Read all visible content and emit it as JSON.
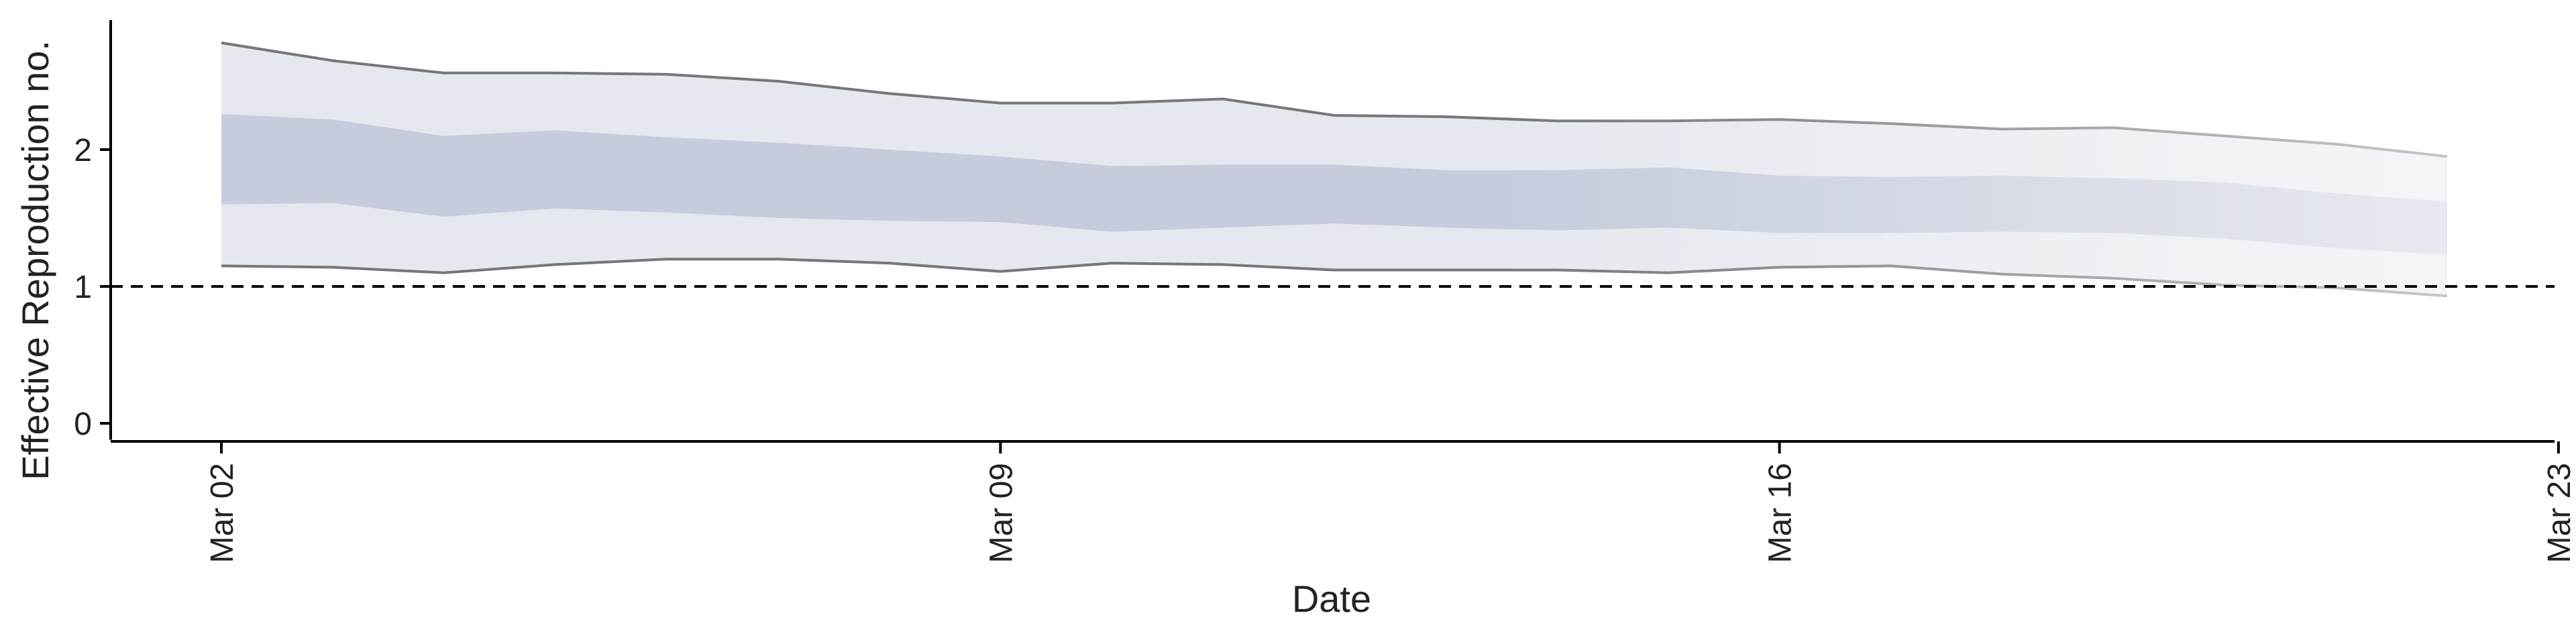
{
  "chart_data": {
    "type": "area",
    "title": "",
    "xlabel": "Date",
    "ylabel": "Effective Reproduction no.",
    "x": [
      "Mar 02",
      "Mar 03",
      "Mar 04",
      "Mar 05",
      "Mar 06",
      "Mar 07",
      "Mar 08",
      "Mar 09",
      "Mar 10",
      "Mar 11",
      "Mar 12",
      "Mar 13",
      "Mar 14",
      "Mar 15",
      "Mar 16",
      "Mar 17",
      "Mar 18",
      "Mar 19",
      "Mar 20",
      "Mar 21",
      "Mar 22"
    ],
    "xlim": [
      "Mar 01",
      "Mar 23"
    ],
    "ylim": [
      -0.12,
      3.0
    ],
    "xticks": [
      "Mar 02",
      "Mar 09",
      "Mar 16",
      "Mar 23"
    ],
    "yticks": [
      0,
      1,
      2
    ],
    "series": [
      {
        "band": "outer",
        "upper": [
          2.78,
          2.65,
          2.56,
          2.56,
          2.55,
          2.5,
          2.41,
          2.34,
          2.34,
          2.37,
          2.25,
          2.24,
          2.21,
          2.21,
          2.22,
          2.19,
          2.15,
          2.16,
          2.1,
          2.04,
          1.95
        ],
        "lower": [
          1.15,
          1.14,
          1.1,
          1.16,
          1.2,
          1.2,
          1.17,
          1.11,
          1.17,
          1.16,
          1.12,
          1.12,
          1.12,
          1.1,
          1.14,
          1.15,
          1.09,
          1.06,
          1.01,
          0.99,
          0.93
        ]
      },
      {
        "band": "inner",
        "upper": [
          2.26,
          2.22,
          2.1,
          2.14,
          2.09,
          2.05,
          2.0,
          1.95,
          1.88,
          1.89,
          1.89,
          1.85,
          1.85,
          1.87,
          1.81,
          1.8,
          1.81,
          1.79,
          1.76,
          1.68,
          1.62
        ],
        "lower": [
          1.6,
          1.61,
          1.51,
          1.57,
          1.54,
          1.5,
          1.48,
          1.47,
          1.4,
          1.43,
          1.46,
          1.43,
          1.41,
          1.43,
          1.39,
          1.39,
          1.4,
          1.39,
          1.35,
          1.28,
          1.23
        ]
      }
    ],
    "reference_line": {
      "y": 1,
      "style": "dashed"
    },
    "colors": {
      "outer_band": "#e6e8ef",
      "inner_band": "#c6ccdc",
      "bound_line": "#777777",
      "axis": "#000000"
    },
    "grid": false,
    "legend": "none"
  }
}
